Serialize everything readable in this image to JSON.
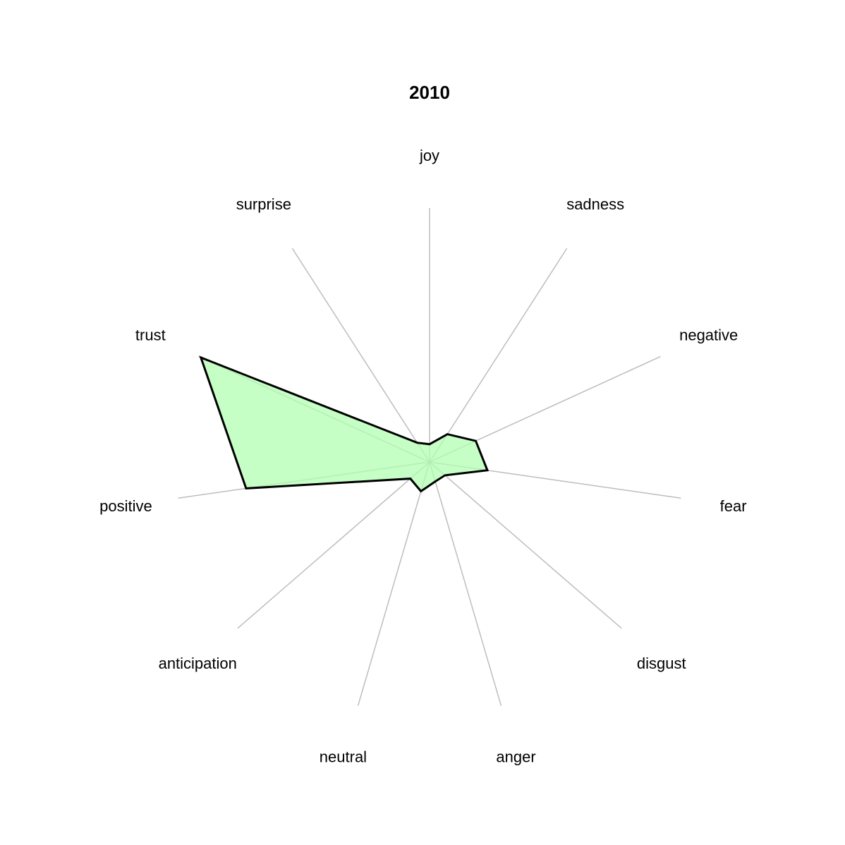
{
  "chart_data": {
    "type": "radar",
    "title": "2010",
    "categories": [
      "joy",
      "sadness",
      "negative",
      "fear",
      "disgust",
      "anger",
      "neutral",
      "anticipation",
      "positive",
      "trust",
      "surprise"
    ],
    "series": [
      {
        "values": [
          0.07,
          0.13,
          0.2,
          0.23,
          0.08,
          0.08,
          0.12,
          0.1,
          0.73,
          0.99,
          0.09
        ],
        "fill_color": "#b3ffb3",
        "line_color": "#000000"
      }
    ],
    "rlim": [
      0,
      1
    ],
    "grid_color": "#bdbdbd",
    "grid": true,
    "legend": "none"
  }
}
